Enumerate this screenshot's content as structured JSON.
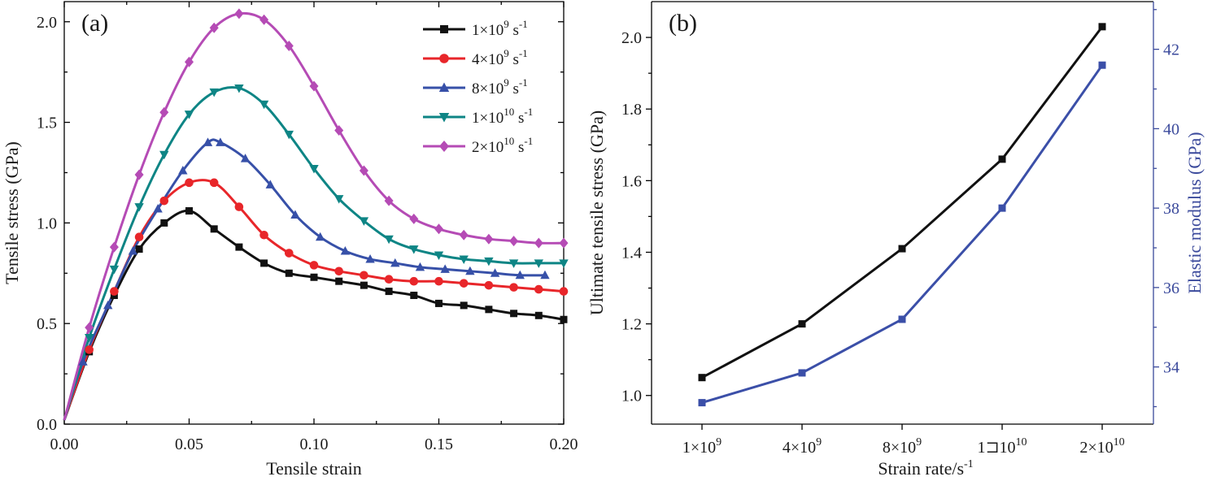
{
  "chart_data": [
    {
      "type": "line",
      "panel_label": "(a)",
      "xlabel": "Tensile strain",
      "ylabel": "Tensile stress (GPa)",
      "xlim": [
        0,
        0.2
      ],
      "ylim": [
        0,
        2.1
      ],
      "xticks": [
        0,
        0.05,
        0.1,
        0.15,
        0.2
      ],
      "xtick_labels": [
        "0.00",
        "0.05",
        "0.10",
        "0.15",
        "0.20"
      ],
      "yticks": [
        0,
        0.5,
        1.0,
        1.5,
        2.0
      ],
      "ytick_labels": [
        "0.0",
        "0.5",
        "1.0",
        "1.5",
        "2.0"
      ],
      "legend_position": "top-right",
      "series": [
        {
          "name": "1×10⁹ s⁻¹",
          "base": "1×10",
          "exp": "9",
          "unit": " s",
          "unit_exp": "-1",
          "color": "#111111",
          "marker": "square",
          "x": [
            0,
            0.01,
            0.02,
            0.03,
            0.04,
            0.05,
            0.06,
            0.07,
            0.08,
            0.09,
            0.1,
            0.11,
            0.12,
            0.13,
            0.14,
            0.15,
            0.16,
            0.17,
            0.18,
            0.19,
            0.2
          ],
          "y": [
            0.02,
            0.36,
            0.64,
            0.87,
            1.0,
            1.06,
            0.97,
            0.88,
            0.8,
            0.75,
            0.73,
            0.71,
            0.69,
            0.66,
            0.64,
            0.6,
            0.59,
            0.57,
            0.55,
            0.54,
            0.52
          ]
        },
        {
          "name": "4×10⁹ s⁻¹",
          "base": "4×10",
          "exp": "9",
          "unit": " s",
          "unit_exp": "-1",
          "color": "#e8262a",
          "marker": "circle",
          "x": [
            0,
            0.01,
            0.02,
            0.03,
            0.04,
            0.05,
            0.06,
            0.07,
            0.08,
            0.09,
            0.1,
            0.11,
            0.12,
            0.13,
            0.14,
            0.15,
            0.16,
            0.17,
            0.18,
            0.19,
            0.2
          ],
          "y": [
            0.02,
            0.37,
            0.66,
            0.93,
            1.11,
            1.2,
            1.2,
            1.08,
            0.94,
            0.85,
            0.79,
            0.76,
            0.74,
            0.72,
            0.71,
            0.71,
            0.7,
            0.69,
            0.68,
            0.67,
            0.66
          ]
        },
        {
          "name": "8×10⁹ s⁻¹",
          "base": "8×10",
          "exp": "9",
          "unit": " s",
          "unit_exp": "-1",
          "color": "#3750a8",
          "marker": "triangle-up",
          "x": [
            0,
            0.0075,
            0.0175,
            0.0275,
            0.0375,
            0.0475,
            0.0575,
            0.0625,
            0.0725,
            0.0825,
            0.0925,
            0.1025,
            0.1125,
            0.1225,
            0.1325,
            0.1425,
            0.1525,
            0.1625,
            0.1725,
            0.1825,
            0.1925
          ],
          "y": [
            0.02,
            0.31,
            0.59,
            0.86,
            1.07,
            1.26,
            1.4,
            1.4,
            1.32,
            1.19,
            1.04,
            0.93,
            0.86,
            0.82,
            0.8,
            0.78,
            0.77,
            0.76,
            0.75,
            0.74,
            0.74
          ]
        },
        {
          "name": "1×10¹⁰ s⁻¹",
          "base": "1×10",
          "exp": "10",
          "unit": " s",
          "unit_exp": "-1",
          "color": "#0e8585",
          "marker": "triangle-down",
          "x": [
            0,
            0.01,
            0.02,
            0.03,
            0.04,
            0.05,
            0.06,
            0.07,
            0.08,
            0.09,
            0.1,
            0.11,
            0.12,
            0.13,
            0.14,
            0.15,
            0.16,
            0.17,
            0.18,
            0.19,
            0.2
          ],
          "y": [
            0.02,
            0.43,
            0.77,
            1.08,
            1.34,
            1.54,
            1.65,
            1.67,
            1.59,
            1.44,
            1.27,
            1.12,
            1.01,
            0.92,
            0.87,
            0.84,
            0.82,
            0.81,
            0.8,
            0.8,
            0.8
          ]
        },
        {
          "name": "2×10¹⁰ s⁻¹",
          "base": "2×10",
          "exp": "10",
          "unit": " s",
          "unit_exp": "-1",
          "color": "#b54bb5",
          "marker": "diamond",
          "x": [
            0,
            0.01,
            0.02,
            0.03,
            0.04,
            0.05,
            0.06,
            0.07,
            0.08,
            0.09,
            0.1,
            0.11,
            0.12,
            0.13,
            0.14,
            0.15,
            0.16,
            0.17,
            0.18,
            0.19,
            0.2
          ],
          "y": [
            0.02,
            0.48,
            0.88,
            1.24,
            1.55,
            1.8,
            1.97,
            2.04,
            2.01,
            1.88,
            1.68,
            1.46,
            1.26,
            1.11,
            1.02,
            0.97,
            0.94,
            0.92,
            0.91,
            0.9,
            0.9
          ]
        }
      ]
    },
    {
      "type": "line",
      "panel_label": "(b)",
      "xlabel": "Strain rate/s",
      "xlabel_sup": "-1",
      "ylabel_left": "Ultimate tensile stress (GPa)",
      "ylabel_right": "Elastic modulus (GPa)",
      "categories": [
        {
          "base": "1×10",
          "exp": "9"
        },
        {
          "base": "4×10",
          "exp": "9"
        },
        {
          "base": "8×10",
          "exp": "9"
        },
        {
          "base": "1⊐10",
          "exp": "10"
        },
        {
          "base": "2×10",
          "exp": "10"
        }
      ],
      "ylim_left": [
        0.92,
        2.1
      ],
      "yticks_left": [
        1.0,
        1.2,
        1.4,
        1.6,
        1.8,
        2.0
      ],
      "ytick_labels_left": [
        "1.0",
        "1.2",
        "1.4",
        "1.6",
        "1.8",
        "2.0"
      ],
      "ylim_right": [
        32.56,
        43.2
      ],
      "yticks_right": [
        34,
        36,
        38,
        40,
        42
      ],
      "ytick_labels_right": [
        "34",
        "36",
        "38",
        "40",
        "42"
      ],
      "series": [
        {
          "axis": "left",
          "color": "#111111",
          "marker": "square",
          "values": [
            1.05,
            1.2,
            1.41,
            1.66,
            2.03
          ]
        },
        {
          "axis": "right",
          "color": "#3b4fa8",
          "marker": "square",
          "values": [
            33.1,
            33.85,
            35.2,
            38.0,
            41.6
          ]
        }
      ],
      "right_axis_color": "#3b4a9c"
    }
  ]
}
